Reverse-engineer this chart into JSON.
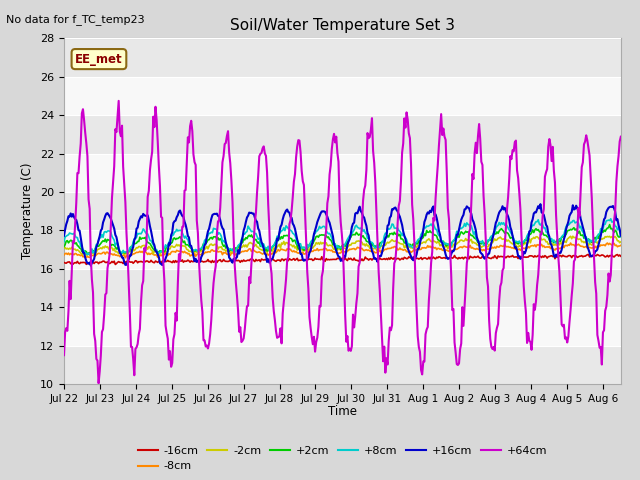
{
  "title": "Soil/Water Temperature Set 3",
  "ylabel": "Temperature (C)",
  "xlabel": "Time",
  "note": "No data for f_TC_temp23",
  "annotation": "EE_met",
  "fig_bg_color": "#d8d8d8",
  "plot_bg_color": "#ffffff",
  "ylim": [
    10,
    28
  ],
  "yticks": [
    10,
    12,
    14,
    16,
    18,
    20,
    22,
    24,
    26,
    28
  ],
  "xlim": [
    0,
    15.5
  ],
  "series_colors": {
    "m16cm": "#cc0000",
    "m8cm": "#ff8800",
    "m2cm": "#cccc00",
    "p2cm": "#00cc00",
    "p8cm": "#00cccc",
    "p16cm": "#0000cc",
    "p64cm": "#cc00cc"
  },
  "series_labels": {
    "m16cm": "-16cm",
    "m8cm": "-8cm",
    "m2cm": "-2cm",
    "p2cm": "+2cm",
    "p8cm": "+8cm",
    "p16cm": "+16cm",
    "p64cm": "+64cm"
  },
  "x_tick_labels": [
    "Jul 22",
    "Jul 23",
    "Jul 24",
    "Jul 25",
    "Jul 26",
    "Jul 27",
    "Jul 28",
    "Jul 29",
    "Jul 30",
    "Jul 31",
    "Aug 1",
    "Aug 2",
    "Aug 3",
    "Aug 4",
    "Aug 5",
    "Aug 6"
  ],
  "x_tick_positions": [
    0,
    1,
    2,
    3,
    4,
    5,
    6,
    7,
    8,
    9,
    10,
    11,
    12,
    13,
    14,
    15
  ],
  "band_colors": [
    "#e8e8e8",
    "#f8f8f8"
  ]
}
